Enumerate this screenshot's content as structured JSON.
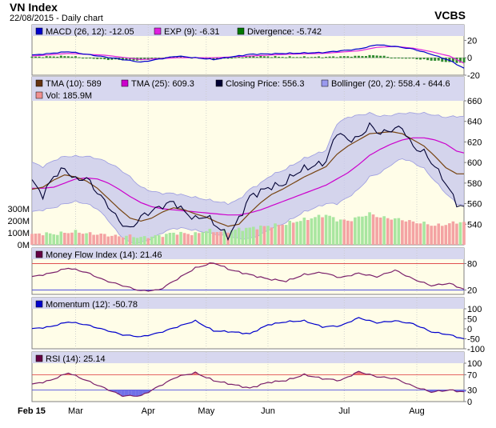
{
  "header": {
    "title": "VN Index",
    "subtitle": "22/08/2015 - Daily chart",
    "brand": "VCBS"
  },
  "x_axis": {
    "labels": [
      {
        "label": "Feb 15",
        "day": 0
      },
      {
        "label": "Mar",
        "day": 12
      },
      {
        "label": "Apr",
        "day": 32
      },
      {
        "label": "May",
        "day": 48
      },
      {
        "label": "Jun",
        "day": 65
      },
      {
        "label": "Jul",
        "day": 86
      },
      {
        "label": "Aug",
        "day": 106
      }
    ],
    "days": 119
  },
  "chart_data": [
    {
      "type": "line",
      "panel": "macd",
      "legend": [
        {
          "name": "MACD (26, 12): -12.05",
          "color": "#0000cc"
        },
        {
          "name": "EXP (9): -6.31",
          "color": "#e020e0"
        },
        {
          "name": "Divergence: -5.742",
          "color": "#007700"
        }
      ],
      "ylim": [
        -20,
        25
      ],
      "yticks": [
        20,
        0,
        -20
      ],
      "x": [
        0,
        10,
        20,
        30,
        40,
        50,
        60,
        70,
        80,
        90,
        95,
        100,
        105,
        110,
        115,
        119
      ],
      "series": [
        {
          "name": "MACD (26, 12): -12.05",
          "values": [
            3,
            7,
            1,
            -5,
            2,
            -2,
            4,
            5,
            6,
            10,
            15,
            13,
            10,
            4,
            -3,
            -12.05
          ]
        },
        {
          "name": "EXP (9): -6.31",
          "values": [
            2,
            5,
            3,
            -2,
            0,
            0,
            2,
            4,
            5,
            8,
            12,
            13,
            11,
            7,
            2,
            -6.31
          ]
        },
        {
          "name": "Divergence: -5.742",
          "values": [
            1,
            2,
            -2,
            -3,
            2,
            -2,
            2,
            1,
            1,
            2,
            3,
            0,
            -1,
            -3,
            -5,
            -5.742
          ]
        }
      ]
    },
    {
      "type": "line",
      "panel": "price",
      "legend": [
        {
          "name": "TMA (10): 589",
          "color": "#663311"
        },
        {
          "name": "TMA (25): 609.3",
          "color": "#cc00cc"
        },
        {
          "name": "Closing Price: 556.3",
          "color": "#000033"
        },
        {
          "name": "Bollinger (20, 2): 558.4 - 644.6",
          "color": "#9999ee"
        },
        {
          "name": "Vol: 185.9M",
          "color": "#f09090"
        }
      ],
      "ylim": [
        520,
        660
      ],
      "yticks": [
        660,
        640,
        620,
        600,
        580,
        560,
        540
      ],
      "vol_ylim": [
        0,
        400
      ],
      "vol_yticks": [
        {
          "label": "300M",
          "v": 300
        },
        {
          "label": "200M",
          "v": 200
        },
        {
          "label": "100M",
          "v": 100
        },
        {
          "label": "0M",
          "v": 0
        }
      ],
      "x": [
        0,
        3,
        6,
        9,
        12,
        15,
        18,
        21,
        24,
        27,
        30,
        33,
        36,
        39,
        42,
        45,
        48,
        51,
        54,
        57,
        60,
        63,
        66,
        69,
        72,
        75,
        78,
        81,
        84,
        87,
        90,
        93,
        96,
        99,
        102,
        105,
        108,
        111,
        114,
        117,
        119
      ],
      "series": [
        {
          "name": "Closing Price: 556.3",
          "values": [
            582,
            568,
            587,
            594,
            583,
            585,
            571,
            558,
            543,
            535,
            547,
            553,
            558,
            562,
            552,
            545,
            548,
            538,
            528,
            545,
            567,
            572,
            577,
            578,
            588,
            594,
            597,
            601,
            630,
            622,
            624,
            636,
            628,
            632,
            634,
            615,
            610,
            596,
            580,
            560,
            556.3
          ]
        },
        {
          "name": "TMA (10): 589",
          "values": [
            574,
            576,
            583,
            588,
            586,
            582,
            575,
            565,
            555,
            546,
            543,
            546,
            552,
            556,
            554,
            550,
            547,
            542,
            538,
            540,
            551,
            561,
            569,
            574,
            580,
            586,
            591,
            596,
            608,
            616,
            622,
            628,
            629,
            630,
            628,
            622,
            616,
            606,
            595,
            589,
            589
          ]
        },
        {
          "name": "TMA (25): 609.3",
          "values": [
            575,
            575,
            576,
            580,
            584,
            585,
            584,
            580,
            574,
            567,
            561,
            557,
            555,
            554,
            553,
            552,
            551,
            550,
            549,
            549,
            551,
            554,
            558,
            562,
            566,
            570,
            574,
            578,
            584,
            590,
            598,
            607,
            613,
            618,
            622,
            624,
            624,
            622,
            618,
            611,
            609.3
          ]
        },
        {
          "name": "Bollinger upper",
          "values": [
            600,
            596,
            602,
            606,
            606,
            606,
            604,
            600,
            594,
            586,
            576,
            572,
            570,
            570,
            568,
            566,
            564,
            562,
            560,
            564,
            574,
            580,
            588,
            592,
            598,
            604,
            608,
            612,
            638,
            644,
            646,
            648,
            645,
            646,
            648,
            648,
            648,
            646,
            644,
            645,
            644.6
          ]
        },
        {
          "name": "Bollinger lower",
          "values": [
            552,
            554,
            556,
            560,
            562,
            560,
            555,
            544,
            530,
            522,
            522,
            526,
            532,
            536,
            536,
            534,
            532,
            530,
            528,
            526,
            526,
            530,
            536,
            540,
            546,
            552,
            556,
            560,
            560,
            566,
            574,
            586,
            590,
            598,
            604,
            600,
            594,
            582,
            570,
            560,
            558.4
          ]
        },
        {
          "name": "Vol: 185.9M",
          "values": [
            85,
            95,
            90,
            100,
            110,
            95,
            90,
            80,
            70,
            75,
            60,
            70,
            80,
            100,
            95,
            90,
            120,
            110,
            115,
            130,
            140,
            150,
            160,
            170,
            190,
            210,
            230,
            250,
            210,
            200,
            230,
            260,
            230,
            220,
            210,
            190,
            180,
            160,
            170,
            190,
            185.9
          ]
        }
      ]
    },
    {
      "type": "line",
      "panel": "mfi",
      "legend": [
        {
          "name": "Money Flow Index (14): 21.46",
          "color": "#660044"
        }
      ],
      "ylim": [
        10,
        90
      ],
      "yticks": [
        80,
        20
      ],
      "thresholds": [
        80,
        20
      ],
      "x": [
        0,
        5,
        10,
        15,
        20,
        25,
        30,
        35,
        40,
        45,
        50,
        55,
        60,
        65,
        70,
        75,
        80,
        85,
        90,
        95,
        100,
        105,
        110,
        115,
        119
      ],
      "series": [
        {
          "name": "Money Flow Index (14): 21.46",
          "values": [
            50,
            58,
            70,
            60,
            42,
            30,
            18,
            20,
            45,
            70,
            82,
            65,
            55,
            45,
            40,
            55,
            60,
            48,
            58,
            50,
            65,
            45,
            30,
            35,
            21.46
          ]
        }
      ]
    },
    {
      "type": "line",
      "panel": "momentum",
      "legend": [
        {
          "name": "Momentum (12): -50.78",
          "color": "#0000cc"
        }
      ],
      "ylim": [
        -100,
        100
      ],
      "yticks": [
        100,
        50,
        0,
        -50,
        -100
      ],
      "x": [
        0,
        5,
        10,
        15,
        20,
        25,
        30,
        35,
        40,
        45,
        50,
        55,
        60,
        65,
        70,
        75,
        80,
        85,
        90,
        95,
        100,
        105,
        110,
        115,
        119
      ],
      "series": [
        {
          "name": "Momentum (12): -50.78",
          "values": [
            0,
            10,
            35,
            20,
            -5,
            -30,
            -40,
            -20,
            10,
            40,
            -10,
            -15,
            -25,
            20,
            35,
            40,
            10,
            15,
            55,
            30,
            40,
            25,
            -15,
            -30,
            -50.78
          ]
        }
      ]
    },
    {
      "type": "line",
      "panel": "rsi",
      "legend": [
        {
          "name": "RSI (14): 25.14",
          "color": "#660044"
        }
      ],
      "ylim": [
        0,
        100
      ],
      "yticks": [
        100,
        70,
        30,
        0
      ],
      "thresholds": [
        70,
        30
      ],
      "x": [
        0,
        5,
        10,
        15,
        20,
        25,
        30,
        35,
        40,
        45,
        50,
        55,
        60,
        65,
        70,
        75,
        80,
        85,
        90,
        95,
        100,
        105,
        110,
        115,
        119
      ],
      "series": [
        {
          "name": "RSI (14): 25.14",
          "values": [
            45,
            55,
            75,
            55,
            35,
            15,
            15,
            40,
            65,
            75,
            55,
            45,
            35,
            50,
            55,
            70,
            60,
            55,
            78,
            65,
            60,
            40,
            25,
            30,
            25.14
          ]
        }
      ]
    }
  ]
}
